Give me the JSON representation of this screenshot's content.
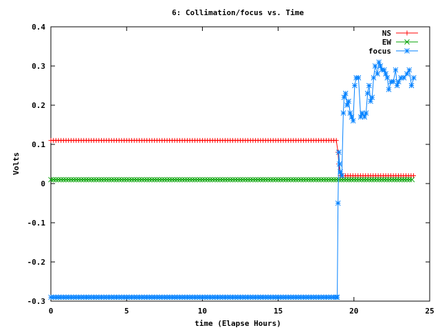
{
  "chart_data": {
    "type": "line",
    "title": "6: Collimation/focus vs. Time",
    "xlabel": "time (Elapse Hours)",
    "ylabel": "Volts",
    "xlim": [
      0,
      25
    ],
    "ylim": [
      -0.3,
      0.4
    ],
    "xticks": [
      "0",
      "5",
      "10",
      "15",
      "20",
      "25"
    ],
    "yticks": [
      "-0.3",
      "-0.2",
      "-0.1",
      "0",
      "0.1",
      "0.2",
      "0.3",
      "0.4"
    ],
    "xtick_values": [
      0,
      5,
      10,
      15,
      20,
      25
    ],
    "ytick_values": [
      -0.3,
      -0.2,
      -0.1,
      0,
      0.1,
      0.2,
      0.3,
      0.4
    ],
    "grid": false,
    "legend_position": "top-right",
    "series": [
      {
        "name": "NS",
        "color": "#ff0000",
        "marker": "plus",
        "segments": [
          {
            "x_from": 0,
            "x_to": 18.9,
            "step": 0.1667,
            "y": 0.11
          },
          {
            "x_from": 19.1,
            "x_to": 24.0,
            "step": 0.1667,
            "y": 0.02
          }
        ],
        "points": [
          [
            18.95,
            0.08
          ],
          [
            19.0,
            0.05
          ]
        ]
      },
      {
        "name": "EW",
        "color": "#00a000",
        "marker": "x",
        "segments": [
          {
            "x_from": 0,
            "x_to": 24.0,
            "step": 0.1667,
            "y": 0.01
          }
        ],
        "points": []
      },
      {
        "name": "focus",
        "color": "#0080ff",
        "marker": "star",
        "segments": [
          {
            "x_from": 0,
            "x_to": 18.9,
            "step": 0.1667,
            "y": -0.29
          }
        ],
        "points": [
          [
            18.9,
            -0.29
          ],
          [
            18.95,
            -0.05
          ],
          [
            19.0,
            0.08
          ],
          [
            19.05,
            0.05
          ],
          [
            19.1,
            0.03
          ],
          [
            19.2,
            0.02
          ],
          [
            19.3,
            0.18
          ],
          [
            19.35,
            0.22
          ],
          [
            19.45,
            0.23
          ],
          [
            19.55,
            0.2
          ],
          [
            19.65,
            0.21
          ],
          [
            19.75,
            0.18
          ],
          [
            19.85,
            0.17
          ],
          [
            19.95,
            0.16
          ],
          [
            20.05,
            0.25
          ],
          [
            20.15,
            0.27
          ],
          [
            20.3,
            0.27
          ],
          [
            20.45,
            0.17
          ],
          [
            20.55,
            0.18
          ],
          [
            20.7,
            0.17
          ],
          [
            20.8,
            0.18
          ],
          [
            20.9,
            0.23
          ],
          [
            21.0,
            0.25
          ],
          [
            21.1,
            0.21
          ],
          [
            21.2,
            0.22
          ],
          [
            21.3,
            0.27
          ],
          [
            21.4,
            0.3
          ],
          [
            21.55,
            0.28
          ],
          [
            21.65,
            0.31
          ],
          [
            21.75,
            0.3
          ],
          [
            21.85,
            0.29
          ],
          [
            22.0,
            0.29
          ],
          [
            22.1,
            0.28
          ],
          [
            22.2,
            0.27
          ],
          [
            22.3,
            0.24
          ],
          [
            22.45,
            0.26
          ],
          [
            22.6,
            0.26
          ],
          [
            22.75,
            0.29
          ],
          [
            22.85,
            0.25
          ],
          [
            22.95,
            0.26
          ],
          [
            23.1,
            0.27
          ],
          [
            23.3,
            0.27
          ],
          [
            23.5,
            0.28
          ],
          [
            23.65,
            0.29
          ],
          [
            23.8,
            0.25
          ],
          [
            23.95,
            0.27
          ]
        ]
      }
    ]
  }
}
